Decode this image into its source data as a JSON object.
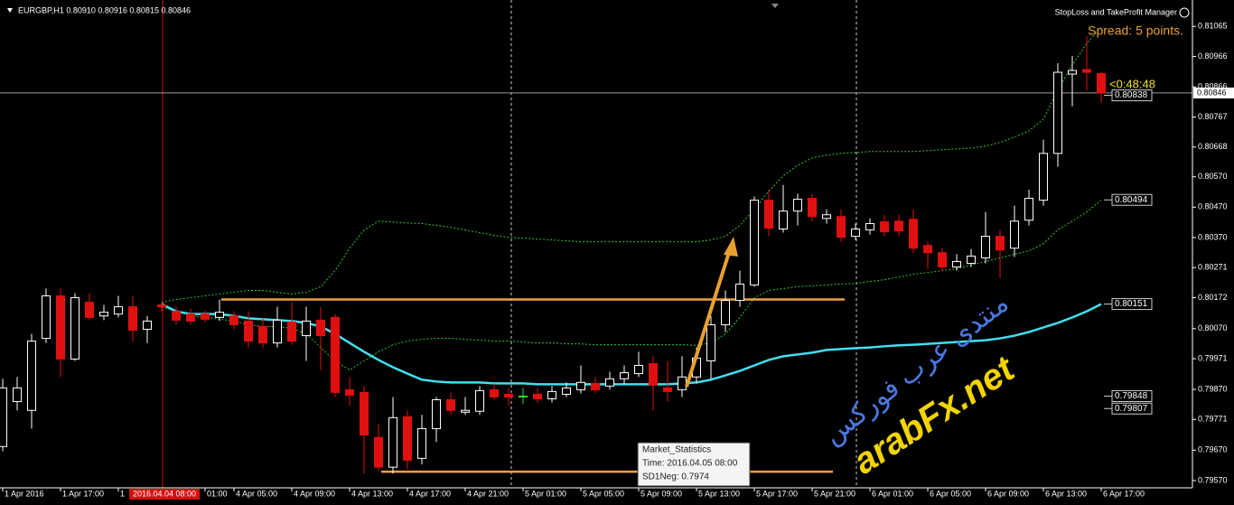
{
  "chart_data": {
    "type": "candlestick",
    "header": "EURGBP,H1 0.80910 0.80916 0.80815 0.80846",
    "manager": "StopLoss and TakeProfit Manager",
    "spread": "Spread: 5 points.",
    "timer": "<0:48:48",
    "crosshair_time": "2016.04.04 08:00",
    "tooltip": {
      "title": "Market_Statistics",
      "time": "Time: 2016.04.05 08:00",
      "value": "SD1Neg: 0.7974"
    },
    "watermark": {
      "arabic": "منتدى عرب فوركس",
      "latin": "arabFx.net"
    },
    "up_color": "#ffffff",
    "down_color": "#e01010",
    "doji_color": "#33dd33",
    "categories": [
      "1 Apr 2016",
      null,
      null,
      null,
      "1 Apr 17:00",
      null,
      null,
      null,
      "1",
      null,
      null,
      null,
      null,
      null,
      "01:00",
      null,
      "4 Apr 05:00",
      null,
      null,
      null,
      "4 Apr 09:00",
      null,
      null,
      null,
      "4 Apr 13:00",
      null,
      null,
      null,
      "4 Apr 17:00",
      null,
      null,
      null,
      "4 Apr 21:00",
      null,
      null,
      null,
      "5 Apr 01:00",
      null,
      null,
      null,
      "5 Apr 05:00",
      null,
      null,
      null,
      "5 Apr 09:00",
      null,
      null,
      null,
      "5 Apr 13:00",
      null,
      null,
      null,
      "5 Apr 17:00",
      null,
      null,
      null,
      "5 Apr 21:00",
      null,
      null,
      null,
      "6 Apr 01:00",
      null,
      null,
      null,
      "6 Apr 05:00",
      null,
      null,
      null,
      "6 Apr 09:00",
      null,
      null,
      null,
      "6 Apr 13:00",
      null,
      null,
      null,
      "6 Apr 17:00"
    ],
    "open": [
      0.79682,
      0.7983,
      0.79801,
      0.80038,
      0.80178,
      0.7997,
      0.80157,
      0.80112,
      0.80118,
      0.80142,
      0.80068,
      0.80148,
      0.80127,
      0.80118,
      0.80118,
      0.80107,
      0.80112,
      0.80095,
      0.80077,
      0.80023,
      0.80092,
      0.80047,
      0.80098,
      0.80107,
      0.79869,
      0.7986,
      0.79712,
      0.79614,
      0.7978,
      0.79643,
      0.79741,
      0.79836,
      0.79795,
      0.79798,
      0.79869,
      0.79854,
      0.79848,
      0.79854,
      0.79839,
      0.79854,
      0.79869,
      0.7989,
      0.79881,
      0.79905,
      0.79922,
      0.79955,
      0.79875,
      0.79869,
      0.79911,
      0.79964,
      0.80083,
      0.80163,
      0.80214,
      0.80493,
      0.80398,
      0.80457,
      0.80499,
      0.80433,
      0.80439,
      0.80374,
      0.80395,
      0.80422,
      0.80424,
      0.8043,
      0.80344,
      0.8032,
      0.80273,
      0.80285,
      0.80303,
      0.80374,
      0.80335,
      0.80427,
      0.80493,
      0.80647,
      0.80908,
      0.80923,
      0.8091
    ],
    "high": [
      0.79905,
      0.79911,
      0.80053,
      0.80202,
      0.80202,
      0.80187,
      0.80187,
      0.80148,
      0.80178,
      0.80178,
      0.80112,
      0.80157,
      0.80142,
      0.80136,
      0.8013,
      0.80166,
      0.80127,
      0.80127,
      0.80107,
      0.80142,
      0.80157,
      0.80142,
      0.80142,
      0.80118,
      0.79911,
      0.79881,
      0.79756,
      0.79845,
      0.79801,
      0.79786,
      0.79845,
      0.7986,
      0.79845,
      0.79881,
      0.7989,
      0.79875,
      0.79875,
      0.79875,
      0.79881,
      0.79893,
      0.79949,
      0.79911,
      0.79928,
      0.79949,
      0.79994,
      0.79979,
      0.79964,
      0.79979,
      0.80008,
      0.80112,
      0.80196,
      0.80261,
      0.80505,
      0.80528,
      0.80543,
      0.80514,
      0.80514,
      0.80463,
      0.80463,
      0.80416,
      0.80433,
      0.80445,
      0.80445,
      0.80463,
      0.80356,
      0.80335,
      0.80315,
      0.80332,
      0.80454,
      0.80395,
      0.80475,
      0.80528,
      0.80692,
      0.80944,
      0.80968,
      0.81033,
      0.80916
    ],
    "low": [
      0.79667,
      0.79801,
      0.79741,
      0.80023,
      0.79911,
      0.79964,
      0.80098,
      0.80098,
      0.80107,
      0.80029,
      0.80023,
      0.80127,
      0.80083,
      0.80083,
      0.80089,
      0.80095,
      0.80068,
      0.80008,
      0.80008,
      0.80008,
      0.80017,
      0.79964,
      0.79934,
      0.79845,
      0.79816,
      0.79593,
      0.79602,
      0.79593,
      0.79608,
      0.79623,
      0.79697,
      0.79786,
      0.79786,
      0.79786,
      0.79836,
      0.79816,
      0.79822,
      0.79825,
      0.79827,
      0.79845,
      0.79857,
      0.79857,
      0.79869,
      0.79887,
      0.79911,
      0.79801,
      0.7983,
      0.79845,
      0.7989,
      0.79905,
      0.80059,
      0.80142,
      0.80208,
      0.80374,
      0.80386,
      0.8041,
      0.80424,
      0.80416,
      0.80356,
      0.80362,
      0.8038,
      0.80374,
      0.80374,
      0.8032,
      0.80267,
      0.80261,
      0.80261,
      0.80273,
      0.80285,
      0.80237,
      0.80306,
      0.8041,
      0.80475,
      0.80603,
      0.80802,
      0.80855,
      0.80815
    ],
    "close": [
      0.79875,
      0.79875,
      0.80029,
      0.80178,
      0.7997,
      0.80172,
      0.80107,
      0.80124,
      0.80142,
      0.80065,
      0.80095,
      0.80142,
      0.80098,
      0.80095,
      0.80101,
      0.80124,
      0.80083,
      0.80029,
      0.80023,
      0.80098,
      0.80029,
      0.80095,
      0.80047,
      0.7986,
      0.79851,
      0.7972,
      0.79614,
      0.79777,
      0.79637,
      0.79741,
      0.79836,
      0.79801,
      0.79801,
      0.79866,
      0.79845,
      0.79845,
      0.79848,
      0.79839,
      0.79863,
      0.79875,
      0.79893,
      0.79869,
      0.79905,
      0.79925,
      0.79949,
      0.79884,
      0.79863,
      0.79911,
      0.79973,
      0.80083,
      0.80163,
      0.80217,
      0.80493,
      0.80401,
      0.80457,
      0.80496,
      0.80439,
      0.80445,
      0.80371,
      0.80398,
      0.80416,
      0.80389,
      0.80392,
      0.80335,
      0.8032,
      0.80273,
      0.80291,
      0.80309,
      0.80374,
      0.80329,
      0.80424,
      0.80499,
      0.80647,
      0.80914,
      0.8092,
      0.80914,
      0.80846
    ],
    "indicators": [
      {
        "color": "#2ec92e",
        "style": "dotted",
        "values": [
          null,
          null,
          null,
          null,
          null,
          null,
          null,
          null,
          null,
          null,
          null,
          0.80157,
          0.80166,
          0.80172,
          0.80178,
          0.80184,
          0.8019,
          0.80196,
          0.80196,
          0.8019,
          0.80184,
          0.8019,
          0.80208,
          0.80261,
          0.80335,
          0.80395,
          0.80424,
          0.80421,
          0.80418,
          0.80416,
          0.8041,
          0.80404,
          0.80395,
          0.80386,
          0.80377,
          0.80371,
          0.80368,
          0.80365,
          0.80362,
          0.80359,
          0.80356,
          0.80356,
          0.80356,
          0.80356,
          0.80356,
          0.80356,
          0.80356,
          0.80356,
          0.80356,
          0.80362,
          0.80374,
          0.8041,
          0.80463,
          0.80522,
          0.80573,
          0.80608,
          0.80632,
          0.80641,
          0.80647,
          0.8065,
          0.80653,
          0.80653,
          0.80653,
          0.80653,
          0.80656,
          0.80659,
          0.80662,
          0.80665,
          0.80671,
          0.80683,
          0.80701,
          0.80721,
          0.8076,
          0.80855,
          0.80938,
          0.81009,
          0.81063
        ]
      },
      {
        "color": "#2ec92e",
        "style": "dotted",
        "values": [
          null,
          null,
          null,
          null,
          null,
          null,
          null,
          null,
          null,
          null,
          null,
          0.80142,
          0.80127,
          0.80112,
          0.80107,
          0.80101,
          0.80095,
          0.80083,
          0.80077,
          0.80077,
          0.80071,
          0.80053,
          0.80008,
          0.79964,
          0.79934,
          0.79964,
          0.79994,
          0.80017,
          0.80029,
          0.80035,
          0.80038,
          0.80038,
          0.80035,
          0.80032,
          0.80029,
          0.80029,
          0.80026,
          0.80023,
          0.80023,
          0.8002,
          0.8002,
          0.80017,
          0.80017,
          0.80017,
          0.80017,
          0.80017,
          0.80017,
          0.80017,
          0.80015,
          0.80023,
          0.80053,
          0.80107,
          0.80172,
          0.80196,
          0.80202,
          0.80208,
          0.80211,
          0.80214,
          0.80217,
          0.80219,
          0.80225,
          0.80231,
          0.8024,
          0.80249,
          0.80255,
          0.80261,
          0.80267,
          0.80279,
          0.80291,
          0.80303,
          0.80315,
          0.80326,
          0.8035,
          0.80395,
          0.80424,
          0.80454,
          0.80493
        ]
      },
      {
        "color": "#40e0f0",
        "style": "solid",
        "values": [
          null,
          null,
          null,
          null,
          null,
          null,
          null,
          null,
          null,
          null,
          null,
          0.80151,
          0.80127,
          0.80118,
          0.80118,
          0.80118,
          0.80112,
          0.80104,
          0.80101,
          0.80098,
          0.80095,
          0.80089,
          0.80077,
          0.80053,
          0.80023,
          0.79994,
          0.79967,
          0.79943,
          0.79922,
          0.79902,
          0.79896,
          0.79893,
          0.79893,
          0.79893,
          0.7989,
          0.7989,
          0.7989,
          0.79887,
          0.79887,
          0.79887,
          0.79887,
          0.79887,
          0.79887,
          0.79887,
          0.79887,
          0.79887,
          0.79887,
          0.7989,
          0.79893,
          0.79902,
          0.79916,
          0.79931,
          0.79949,
          0.79967,
          0.79979,
          0.79985,
          0.79991,
          0.8,
          0.80003,
          0.80006,
          0.80008,
          0.80012,
          0.80015,
          0.80017,
          0.8002,
          0.80023,
          0.80026,
          0.80029,
          0.80032,
          0.80038,
          0.80047,
          0.80059,
          0.80074,
          0.80089,
          0.80107,
          0.80127,
          0.80151
        ]
      }
    ],
    "levels": [
      {
        "color": "#f0a040",
        "value": 0.80166
      },
      {
        "color": "#f0a040",
        "value": 0.79599
      }
    ],
    "current_price": 0.80846,
    "level_labels": [
      0.80838,
      0.80494,
      0.80151,
      0.79848,
      0.79807
    ],
    "ylim": [
      0.79546,
      0.81152
    ],
    "yticks": [
      0.81065,
      0.80966,
      0.80866,
      0.80767,
      0.80668,
      {
        "value": 0.8057,
        "label": "0.80570"
      },
      {
        "value": 0.8047,
        "label": "0.80470"
      },
      {
        "value": 0.8037,
        "label": "0.80370"
      },
      0.80271,
      0.80172,
      {
        "value": 0.8007,
        "label": "0.80070"
      },
      0.79971,
      {
        "value": 0.7987,
        "label": "0.79870"
      },
      0.79771,
      {
        "value": 0.7967,
        "label": "0.79670"
      },
      {
        "value": 0.7957,
        "label": "0.79570"
      }
    ]
  }
}
